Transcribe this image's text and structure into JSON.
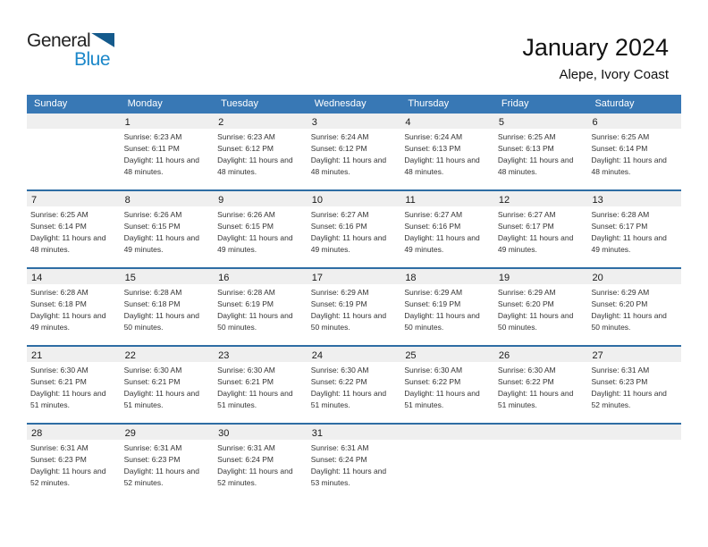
{
  "logo": {
    "text_top": "General",
    "text_bottom": "Blue"
  },
  "header": {
    "title": "January 2024",
    "location": "Alepe, Ivory Coast"
  },
  "colors": {
    "header_bar": "#3878b5",
    "week_separator": "#2e6da4",
    "day_band": "#efefef",
    "logo_blue": "#1b87c9",
    "logo_triangle": "#145a8c"
  },
  "calendar": {
    "day_headers": [
      "Sunday",
      "Monday",
      "Tuesday",
      "Wednesday",
      "Thursday",
      "Friday",
      "Saturday"
    ],
    "weeks": [
      [
        null,
        {
          "day": "1",
          "sunrise": "Sunrise: 6:23 AM",
          "sunset": "Sunset: 6:11 PM",
          "daylight": "Daylight: 11 hours and 48 minutes."
        },
        {
          "day": "2",
          "sunrise": "Sunrise: 6:23 AM",
          "sunset": "Sunset: 6:12 PM",
          "daylight": "Daylight: 11 hours and 48 minutes."
        },
        {
          "day": "3",
          "sunrise": "Sunrise: 6:24 AM",
          "sunset": "Sunset: 6:12 PM",
          "daylight": "Daylight: 11 hours and 48 minutes."
        },
        {
          "day": "4",
          "sunrise": "Sunrise: 6:24 AM",
          "sunset": "Sunset: 6:13 PM",
          "daylight": "Daylight: 11 hours and 48 minutes."
        },
        {
          "day": "5",
          "sunrise": "Sunrise: 6:25 AM",
          "sunset": "Sunset: 6:13 PM",
          "daylight": "Daylight: 11 hours and 48 minutes."
        },
        {
          "day": "6",
          "sunrise": "Sunrise: 6:25 AM",
          "sunset": "Sunset: 6:14 PM",
          "daylight": "Daylight: 11 hours and 48 minutes."
        }
      ],
      [
        {
          "day": "7",
          "sunrise": "Sunrise: 6:25 AM",
          "sunset": "Sunset: 6:14 PM",
          "daylight": "Daylight: 11 hours and 48 minutes."
        },
        {
          "day": "8",
          "sunrise": "Sunrise: 6:26 AM",
          "sunset": "Sunset: 6:15 PM",
          "daylight": "Daylight: 11 hours and 49 minutes."
        },
        {
          "day": "9",
          "sunrise": "Sunrise: 6:26 AM",
          "sunset": "Sunset: 6:15 PM",
          "daylight": "Daylight: 11 hours and 49 minutes."
        },
        {
          "day": "10",
          "sunrise": "Sunrise: 6:27 AM",
          "sunset": "Sunset: 6:16 PM",
          "daylight": "Daylight: 11 hours and 49 minutes."
        },
        {
          "day": "11",
          "sunrise": "Sunrise: 6:27 AM",
          "sunset": "Sunset: 6:16 PM",
          "daylight": "Daylight: 11 hours and 49 minutes."
        },
        {
          "day": "12",
          "sunrise": "Sunrise: 6:27 AM",
          "sunset": "Sunset: 6:17 PM",
          "daylight": "Daylight: 11 hours and 49 minutes."
        },
        {
          "day": "13",
          "sunrise": "Sunrise: 6:28 AM",
          "sunset": "Sunset: 6:17 PM",
          "daylight": "Daylight: 11 hours and 49 minutes."
        }
      ],
      [
        {
          "day": "14",
          "sunrise": "Sunrise: 6:28 AM",
          "sunset": "Sunset: 6:18 PM",
          "daylight": "Daylight: 11 hours and 49 minutes."
        },
        {
          "day": "15",
          "sunrise": "Sunrise: 6:28 AM",
          "sunset": "Sunset: 6:18 PM",
          "daylight": "Daylight: 11 hours and 50 minutes."
        },
        {
          "day": "16",
          "sunrise": "Sunrise: 6:28 AM",
          "sunset": "Sunset: 6:19 PM",
          "daylight": "Daylight: 11 hours and 50 minutes."
        },
        {
          "day": "17",
          "sunrise": "Sunrise: 6:29 AM",
          "sunset": "Sunset: 6:19 PM",
          "daylight": "Daylight: 11 hours and 50 minutes."
        },
        {
          "day": "18",
          "sunrise": "Sunrise: 6:29 AM",
          "sunset": "Sunset: 6:19 PM",
          "daylight": "Daylight: 11 hours and 50 minutes."
        },
        {
          "day": "19",
          "sunrise": "Sunrise: 6:29 AM",
          "sunset": "Sunset: 6:20 PM",
          "daylight": "Daylight: 11 hours and 50 minutes."
        },
        {
          "day": "20",
          "sunrise": "Sunrise: 6:29 AM",
          "sunset": "Sunset: 6:20 PM",
          "daylight": "Daylight: 11 hours and 50 minutes."
        }
      ],
      [
        {
          "day": "21",
          "sunrise": "Sunrise: 6:30 AM",
          "sunset": "Sunset: 6:21 PM",
          "daylight": "Daylight: 11 hours and 51 minutes."
        },
        {
          "day": "22",
          "sunrise": "Sunrise: 6:30 AM",
          "sunset": "Sunset: 6:21 PM",
          "daylight": "Daylight: 11 hours and 51 minutes."
        },
        {
          "day": "23",
          "sunrise": "Sunrise: 6:30 AM",
          "sunset": "Sunset: 6:21 PM",
          "daylight": "Daylight: 11 hours and 51 minutes."
        },
        {
          "day": "24",
          "sunrise": "Sunrise: 6:30 AM",
          "sunset": "Sunset: 6:22 PM",
          "daylight": "Daylight: 11 hours and 51 minutes."
        },
        {
          "day": "25",
          "sunrise": "Sunrise: 6:30 AM",
          "sunset": "Sunset: 6:22 PM",
          "daylight": "Daylight: 11 hours and 51 minutes."
        },
        {
          "day": "26",
          "sunrise": "Sunrise: 6:30 AM",
          "sunset": "Sunset: 6:22 PM",
          "daylight": "Daylight: 11 hours and 51 minutes."
        },
        {
          "day": "27",
          "sunrise": "Sunrise: 6:31 AM",
          "sunset": "Sunset: 6:23 PM",
          "daylight": "Daylight: 11 hours and 52 minutes."
        }
      ],
      [
        {
          "day": "28",
          "sunrise": "Sunrise: 6:31 AM",
          "sunset": "Sunset: 6:23 PM",
          "daylight": "Daylight: 11 hours and 52 minutes."
        },
        {
          "day": "29",
          "sunrise": "Sunrise: 6:31 AM",
          "sunset": "Sunset: 6:23 PM",
          "daylight": "Daylight: 11 hours and 52 minutes."
        },
        {
          "day": "30",
          "sunrise": "Sunrise: 6:31 AM",
          "sunset": "Sunset: 6:24 PM",
          "daylight": "Daylight: 11 hours and 52 minutes."
        },
        {
          "day": "31",
          "sunrise": "Sunrise: 6:31 AM",
          "sunset": "Sunset: 6:24 PM",
          "daylight": "Daylight: 11 hours and 53 minutes."
        },
        null,
        null,
        null
      ]
    ]
  }
}
